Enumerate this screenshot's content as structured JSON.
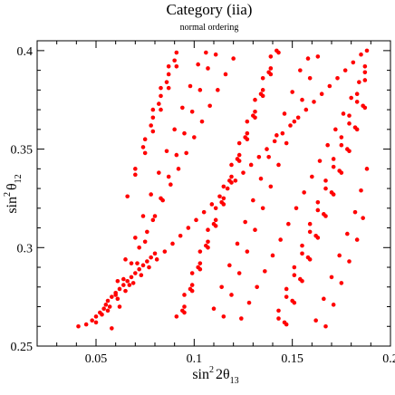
{
  "chart_data": {
    "type": "scatter",
    "title": "Category (iia)",
    "subtitle": "normal ordering",
    "xlabel": {
      "base": "sin",
      "sup": "2",
      "mid": "2θ",
      "sub": "13"
    },
    "ylabel": {
      "base": "sin",
      "sup": "2",
      "mid": "θ",
      "sub": "12"
    },
    "xlim": [
      0.02,
      0.2
    ],
    "ylim": [
      0.25,
      0.405
    ],
    "x_major_ticks": [
      0.05,
      0.1,
      0.15,
      0.2
    ],
    "x_tick_labels": [
      "0.05",
      "0.1",
      "0.15",
      "0.2"
    ],
    "y_major_ticks": [
      0.25,
      0.3,
      0.35,
      0.4
    ],
    "y_tick_labels": [
      "0.25",
      "0.3",
      "0.35",
      "0.4"
    ],
    "grid": false,
    "legend": "none",
    "marker_color": "#ff0000",
    "series": [
      {
        "x": [
          0.041,
          0.045,
          0.048,
          0.05,
          0.052,
          0.054,
          0.055,
          0.056,
          0.058,
          0.06,
          0.062,
          0.064,
          0.066,
          0.068,
          0.07,
          0.072,
          0.074,
          0.076,
          0.078,
          0.08,
          0.05,
          0.053,
          0.057,
          0.061,
          0.065,
          0.069,
          0.073,
          0.077,
          0.081,
          0.085,
          0.089,
          0.093,
          0.097,
          0.101,
          0.105,
          0.109,
          0.113,
          0.117,
          0.121,
          0.125,
          0.129,
          0.133,
          0.137,
          0.141,
          0.145,
          0.149,
          0.153,
          0.157,
          0.161,
          0.165,
          0.169,
          0.173,
          0.177,
          0.181,
          0.185,
          0.188,
          0.056,
          0.06,
          0.064,
          0.068,
          0.072,
          0.076,
          0.08,
          0.084,
          0.088,
          0.092,
          0.096,
          0.1,
          0.104,
          0.108,
          0.112,
          0.116,
          0.12,
          0.124,
          0.128,
          0.132,
          0.136,
          0.14,
          0.144,
          0.148,
          0.152,
          0.156,
          0.16,
          0.164,
          0.168,
          0.172,
          0.176,
          0.18,
          0.184,
          0.187,
          0.058,
          0.062,
          0.067,
          0.071,
          0.075,
          0.079,
          0.083,
          0.087,
          0.091,
          0.095,
          0.099,
          0.103,
          0.107,
          0.111,
          0.115,
          0.119,
          0.123,
          0.127,
          0.131,
          0.135,
          0.139,
          0.143,
          0.147,
          0.151,
          0.155,
          0.159,
          0.163,
          0.167,
          0.171,
          0.175,
          0.179,
          0.183,
          0.186,
          0.061,
          0.065,
          0.07,
          0.074,
          0.078,
          0.082,
          0.086,
          0.09,
          0.094,
          0.098,
          0.102,
          0.106,
          0.11,
          0.114,
          0.118,
          0.122,
          0.126,
          0.13,
          0.134,
          0.138,
          0.142,
          0.146,
          0.15,
          0.154,
          0.158,
          0.162,
          0.166,
          0.17,
          0.174,
          0.178,
          0.182,
          0.185,
          0.188,
          0.066,
          0.07,
          0.075,
          0.079,
          0.083,
          0.087,
          0.091,
          0.095,
          0.099,
          0.103,
          0.107,
          0.111,
          0.115,
          0.119,
          0.123,
          0.127,
          0.131,
          0.135,
          0.139,
          0.143,
          0.147,
          0.151,
          0.155,
          0.159,
          0.163,
          0.167,
          0.171,
          0.175,
          0.179,
          0.183,
          0.187,
          0.07,
          0.074,
          0.078,
          0.082,
          0.086,
          0.09,
          0.094,
          0.098,
          0.102,
          0.106,
          0.11,
          0.114,
          0.118,
          0.122,
          0.126,
          0.13,
          0.134,
          0.138,
          0.142,
          0.146,
          0.15,
          0.154,
          0.158,
          0.162,
          0.166,
          0.17,
          0.174,
          0.178,
          0.182,
          0.186,
          0.075,
          0.079,
          0.083,
          0.087,
          0.091,
          0.095,
          0.099,
          0.103,
          0.107,
          0.111,
          0.115,
          0.119,
          0.123,
          0.127,
          0.131,
          0.135,
          0.139,
          0.143,
          0.147,
          0.151,
          0.155,
          0.159,
          0.163,
          0.167,
          0.171,
          0.175,
          0.179,
          0.183,
          0.187,
          0.079,
          0.083,
          0.087,
          0.091,
          0.095,
          0.099,
          0.103,
          0.107,
          0.111,
          0.115,
          0.119,
          0.123,
          0.127,
          0.131,
          0.135,
          0.139,
          0.143,
          0.147,
          0.151,
          0.155,
          0.159,
          0.163,
          0.167,
          0.171,
          0.175,
          0.179,
          0.183,
          0.187
        ],
        "y": [
          0.26,
          0.261,
          0.263,
          0.265,
          0.267,
          0.269,
          0.271,
          0.273,
          0.275,
          0.277,
          0.279,
          0.281,
          0.283,
          0.285,
          0.287,
          0.289,
          0.291,
          0.293,
          0.295,
          0.297,
          0.262,
          0.266,
          0.27,
          0.274,
          0.278,
          0.282,
          0.286,
          0.29,
          0.294,
          0.298,
          0.302,
          0.306,
          0.31,
          0.314,
          0.318,
          0.322,
          0.326,
          0.33,
          0.334,
          0.338,
          0.342,
          0.346,
          0.35,
          0.354,
          0.358,
          0.362,
          0.366,
          0.37,
          0.374,
          0.378,
          0.382,
          0.386,
          0.39,
          0.394,
          0.398,
          0.4,
          0.268,
          0.276,
          0.284,
          0.292,
          0.3,
          0.308,
          0.316,
          0.324,
          0.332,
          0.34,
          0.348,
          0.356,
          0.364,
          0.372,
          0.38,
          0.388,
          0.396,
          0.264,
          0.272,
          0.28,
          0.288,
          0.296,
          0.304,
          0.312,
          0.32,
          0.328,
          0.336,
          0.344,
          0.352,
          0.36,
          0.368,
          0.376,
          0.384,
          0.392,
          0.259,
          0.27,
          0.281,
          0.292,
          0.303,
          0.314,
          0.325,
          0.336,
          0.347,
          0.358,
          0.369,
          0.38,
          0.391,
          0.398,
          0.265,
          0.276,
          0.287,
          0.298,
          0.309,
          0.32,
          0.331,
          0.342,
          0.353,
          0.364,
          0.375,
          0.386,
          0.397,
          0.26,
          0.271,
          0.282,
          0.293,
          0.304,
          0.315,
          0.283,
          0.294,
          0.305,
          0.316,
          0.327,
          0.338,
          0.349,
          0.36,
          0.371,
          0.382,
          0.393,
          0.399,
          0.269,
          0.28,
          0.291,
          0.302,
          0.313,
          0.324,
          0.335,
          0.346,
          0.357,
          0.368,
          0.379,
          0.39,
          0.396,
          0.263,
          0.274,
          0.285,
          0.296,
          0.307,
          0.318,
          0.329,
          0.34,
          0.326,
          0.337,
          0.348,
          0.359,
          0.37,
          0.381,
          0.392,
          0.267,
          0.278,
          0.289,
          0.3,
          0.311,
          0.322,
          0.333,
          0.344,
          0.355,
          0.366,
          0.377,
          0.388,
          0.399,
          0.261,
          0.272,
          0.283,
          0.294,
          0.305,
          0.316,
          0.327,
          0.338,
          0.349,
          0.36,
          0.371,
          0.34,
          0.351,
          0.362,
          0.373,
          0.384,
          0.395,
          0.268,
          0.279,
          0.29,
          0.301,
          0.312,
          0.323,
          0.334,
          0.345,
          0.356,
          0.367,
          0.378,
          0.389,
          0.4,
          0.262,
          0.273,
          0.284,
          0.295,
          0.306,
          0.317,
          0.328,
          0.339,
          0.35,
          0.361,
          0.372,
          0.355,
          0.366,
          0.377,
          0.388,
          0.399,
          0.27,
          0.281,
          0.292,
          0.303,
          0.314,
          0.325,
          0.336,
          0.347,
          0.358,
          0.369,
          0.38,
          0.391,
          0.264,
          0.275,
          0.286,
          0.297,
          0.308,
          0.319,
          0.33,
          0.341,
          0.352,
          0.363,
          0.374,
          0.385,
          0.37,
          0.381,
          0.392,
          0.265,
          0.276,
          0.287,
          0.298,
          0.309,
          0.32,
          0.331,
          0.342,
          0.353,
          0.364,
          0.375,
          0.386,
          0.397,
          0.268,
          0.279,
          0.29,
          0.301,
          0.312,
          0.323,
          0.334,
          0.345,
          0.356,
          0.367,
          0.378,
          0.389
        ]
      }
    ]
  }
}
